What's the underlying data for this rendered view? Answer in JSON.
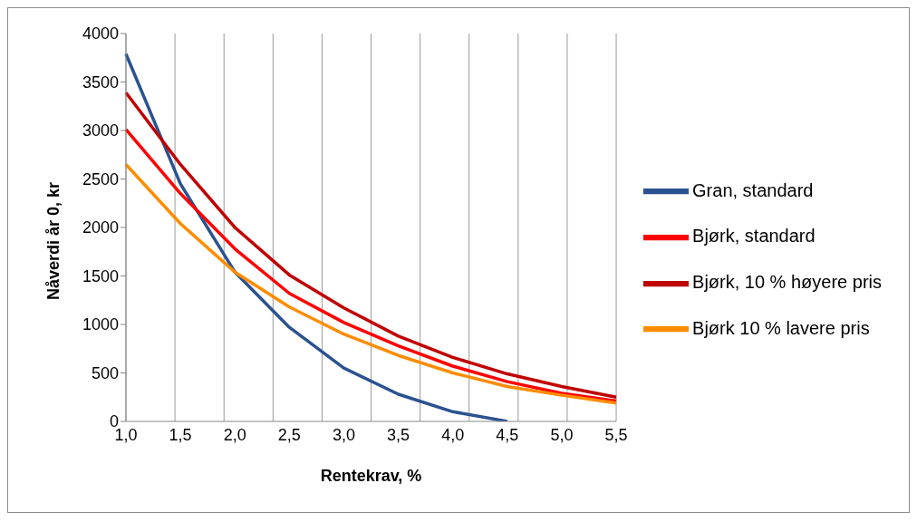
{
  "chart_data": {
    "type": "line",
    "xlabel": "Rentekrav, %",
    "ylabel": "Nåverdi år 0, kr",
    "categories": [
      "1,0",
      "1,5",
      "2,0",
      "2,5",
      "3,0",
      "3,5",
      "4,0",
      "4,5",
      "5,0",
      "5,5"
    ],
    "series": [
      {
        "name": "Gran, standard",
        "color": "#2a5290",
        "values": [
          3790,
          2450,
          1540,
          970,
          550,
          280,
          100,
          0,
          null,
          null
        ]
      },
      {
        "name": "Bjørk, standard",
        "color": "#ff0000",
        "values": [
          3010,
          2350,
          1780,
          1320,
          1020,
          780,
          570,
          410,
          290,
          210
        ]
      },
      {
        "name": "Bjørk, 10 % høyere pris",
        "color": "#c00000",
        "values": [
          3390,
          2650,
          2000,
          1510,
          1170,
          880,
          660,
          490,
          360,
          250
        ]
      },
      {
        "name": "Bjørk 10 % lavere pris",
        "color": "#ff8c00",
        "values": [
          2650,
          2040,
          1540,
          1180,
          900,
          680,
          500,
          360,
          270,
          190
        ]
      }
    ],
    "ylim": [
      0,
      4000
    ],
    "yticks": [
      0,
      500,
      1000,
      1500,
      2000,
      2500,
      3000,
      3500,
      4000
    ],
    "grid": "x",
    "legend": "right",
    "line_style": "solid"
  }
}
